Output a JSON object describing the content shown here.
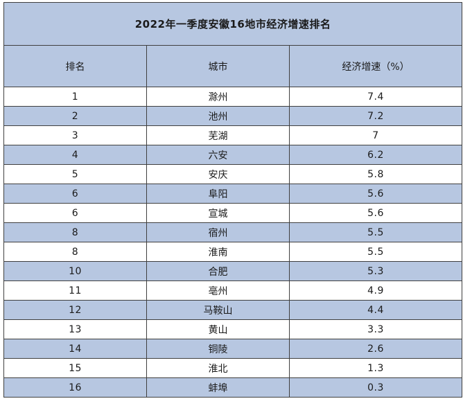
{
  "title": "2022年一季度安徽16地市经济增速排名",
  "columns": [
    "排名",
    "城市",
    "经济增速（%）"
  ],
  "rows": [
    {
      "rank": "1",
      "city": "滁州",
      "growth": "7.4"
    },
    {
      "rank": "2",
      "city": "池州",
      "growth": "7.2"
    },
    {
      "rank": "3",
      "city": "芜湖",
      "growth": "7"
    },
    {
      "rank": "4",
      "city": "六安",
      "growth": "6.2"
    },
    {
      "rank": "5",
      "city": "安庆",
      "growth": "5.8"
    },
    {
      "rank": "6",
      "city": "阜阳",
      "growth": "5.6"
    },
    {
      "rank": "6",
      "city": "宣城",
      "growth": "5.6"
    },
    {
      "rank": "8",
      "city": "宿州",
      "growth": "5.5"
    },
    {
      "rank": "8",
      "city": "淮南",
      "growth": "5.5"
    },
    {
      "rank": "10",
      "city": "合肥",
      "growth": "5.3"
    },
    {
      "rank": "11",
      "city": "亳州",
      "growth": "4.9"
    },
    {
      "rank": "12",
      "city": "马鞍山",
      "growth": "4.4"
    },
    {
      "rank": "13",
      "city": "黄山",
      "growth": "3.3"
    },
    {
      "rank": "14",
      "city": "铜陵",
      "growth": "2.6"
    },
    {
      "rank": "15",
      "city": "淮北",
      "growth": "1.3"
    },
    {
      "rank": "16",
      "city": "蚌埠",
      "growth": "0.3"
    }
  ],
  "colors": {
    "band": "#b7c7e1",
    "border": "#3f3f3f"
  }
}
